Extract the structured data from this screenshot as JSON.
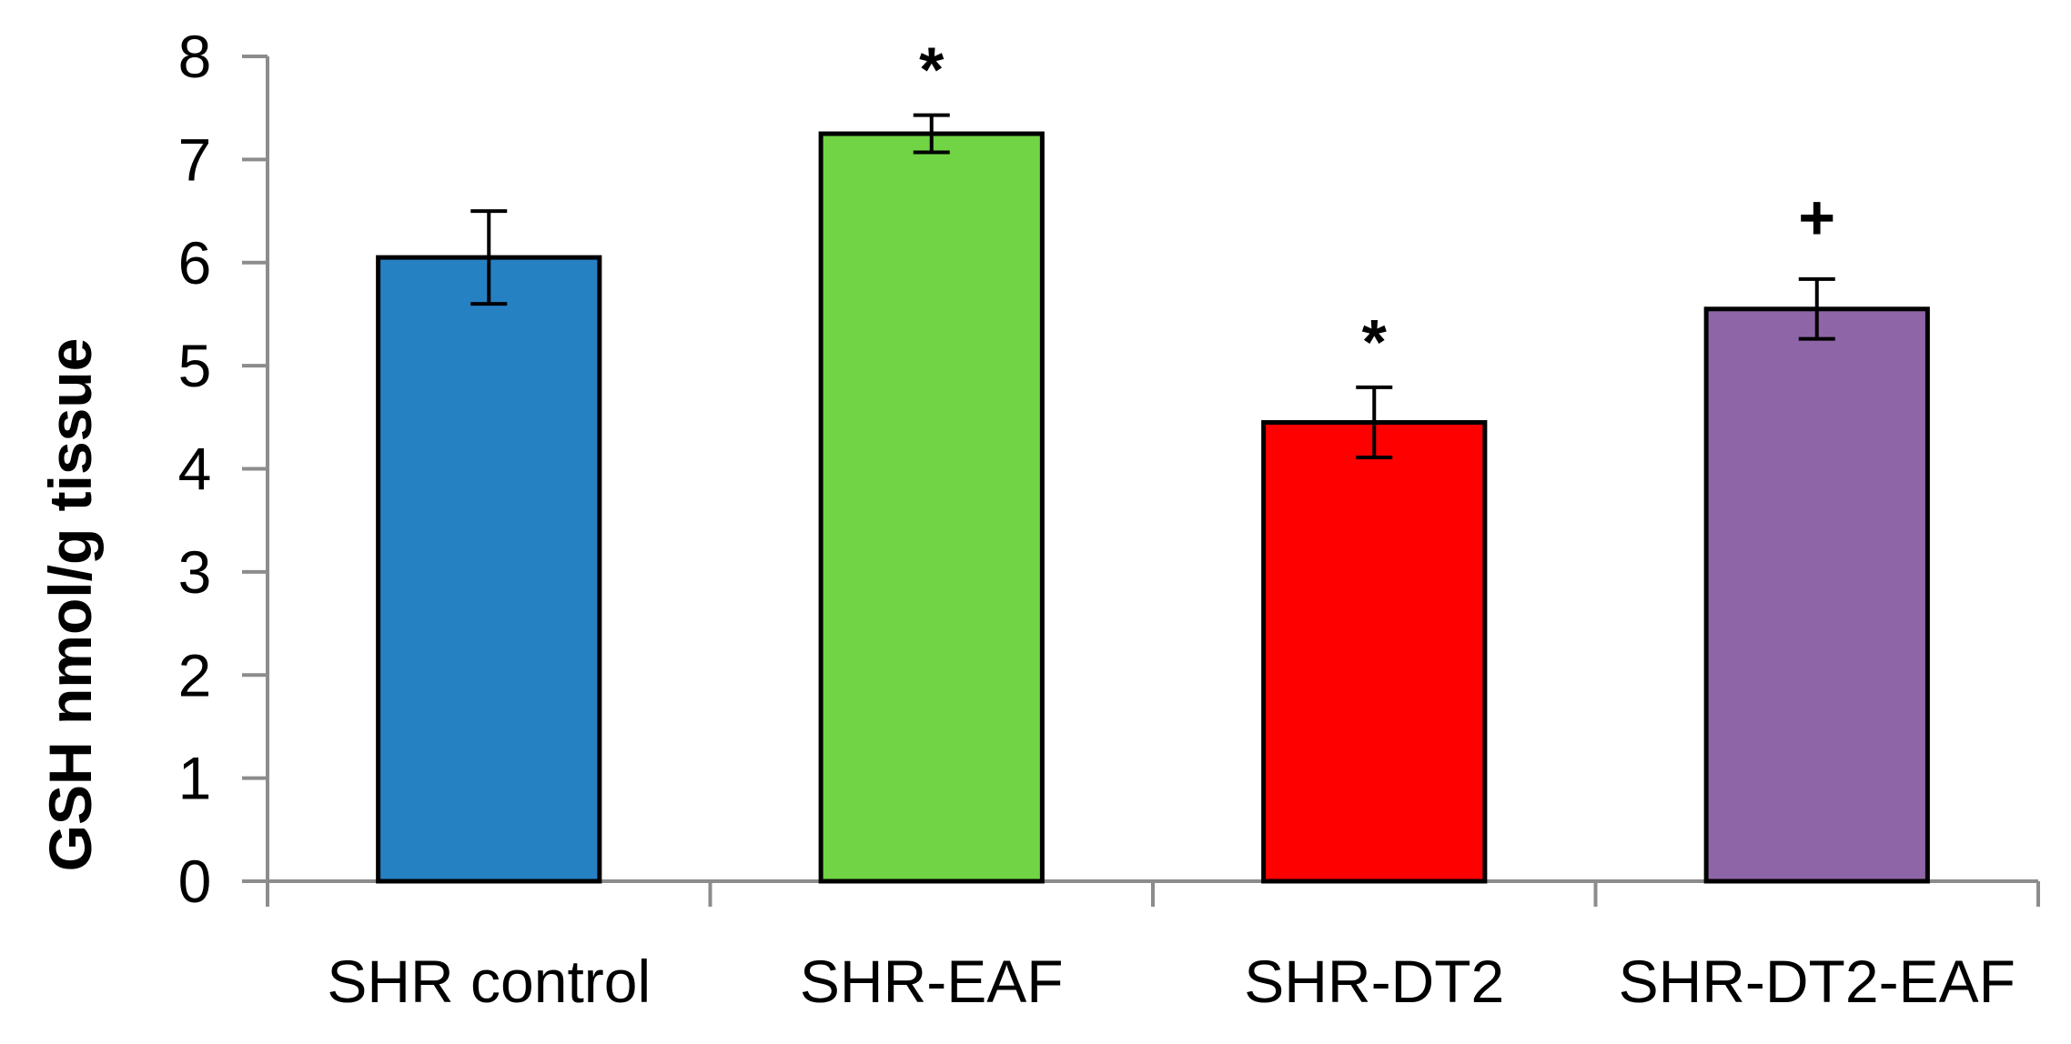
{
  "chart_data": {
    "type": "bar",
    "title": "",
    "xlabel": "",
    "ylabel": "GSH nmol/g tissue",
    "ylim": [
      0,
      8
    ],
    "yticks": [
      0,
      1,
      2,
      3,
      4,
      5,
      6,
      7,
      8
    ],
    "grid": false,
    "legend": "none",
    "categories": [
      "SHR control",
      "SHR-EAF",
      "SHR-DT2",
      "SHR-DT2-EAF"
    ],
    "values": [
      6.05,
      7.25,
      4.45,
      5.55
    ],
    "errors": [
      0.45,
      0.18,
      0.34,
      0.29
    ],
    "colors": [
      "#2681C3",
      "#70D444",
      "#FF0000",
      "#8E66A7"
    ],
    "annotations": [
      "",
      "*",
      "*",
      "+"
    ]
  }
}
